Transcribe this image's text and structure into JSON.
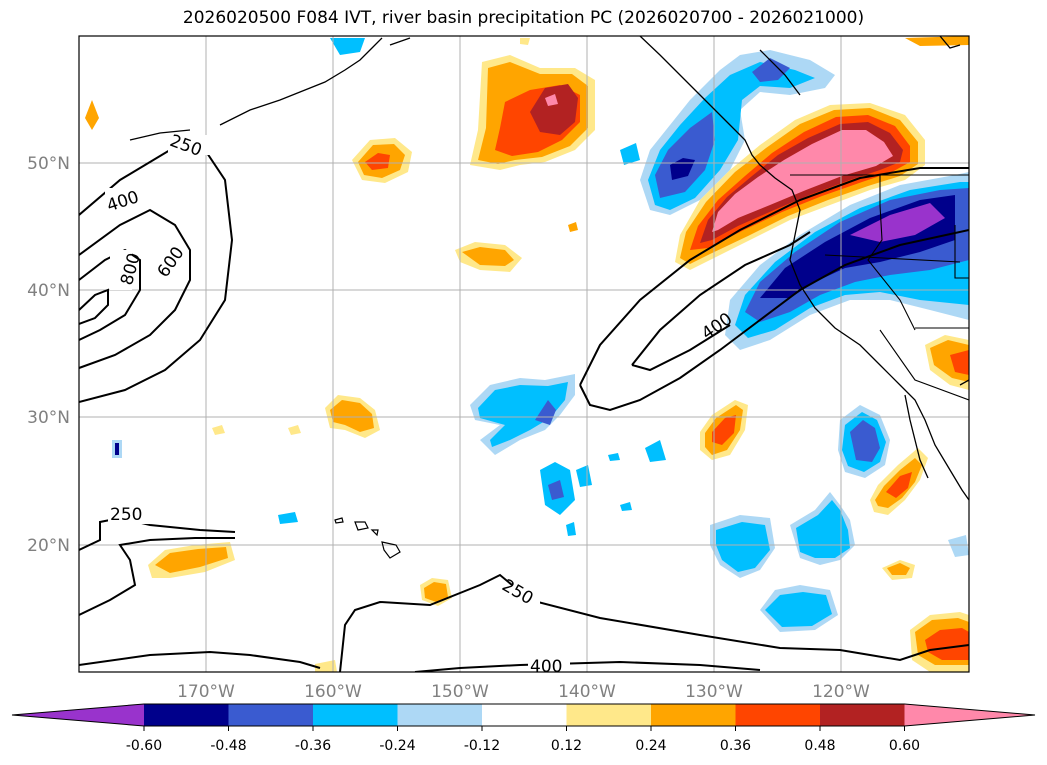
{
  "title": "2026020500 F084 IVT, river basin precipitation PC (2026020700 - 2026021000)",
  "map": {
    "lon_labels": [
      "170°W",
      "160°W",
      "150°W",
      "140°W",
      "130°W",
      "120°W"
    ],
    "lat_labels": [
      "50°N",
      "40°N",
      "30°N",
      "20°N"
    ],
    "lon_range": [
      -180,
      -110
    ],
    "lat_range": [
      10,
      60
    ],
    "gridlines": true
  },
  "ivt_contours": {
    "levels_labeled": [
      "250",
      "400",
      "600",
      "800",
      "250",
      "250",
      "400",
      "400"
    ],
    "color": "#000000"
  },
  "colorbar": {
    "tick_labels": [
      "-0.60",
      "-0.48",
      "-0.36",
      "-0.24",
      "-0.12",
      "0.12",
      "0.24",
      "0.36",
      "0.48",
      "0.60"
    ],
    "colors": [
      "#9933cc",
      "#00008b",
      "#3a5bd0",
      "#00bfff",
      "#add8f5",
      "#ffffff",
      "#ffe88a",
      "#ffa500",
      "#ff4500",
      "#b22222",
      "#ff88aa",
      "#ff88aa"
    ]
  },
  "colors": {
    "pos_weak": "#ffe88a",
    "pos_mid": "#ffa500",
    "pos_strong": "#ff4500",
    "pos_vstrong": "#b22222",
    "pos_max": "#ff88aa",
    "neg_weak": "#add8f5",
    "neg_mid": "#00bfff",
    "neg_strong": "#3a5bd0",
    "neg_vstrong": "#00008b",
    "neg_max": "#9933cc"
  }
}
